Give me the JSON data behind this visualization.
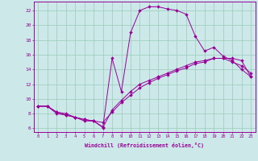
{
  "xlabel": "Windchill (Refroidissement éolien,°C)",
  "background_color": "#cce8e8",
  "grid_color": "#99ccbb",
  "line_color": "#990099",
  "xlim": [
    -0.5,
    23.5
  ],
  "ylim": [
    5.5,
    23.2
  ],
  "xticks": [
    0,
    1,
    2,
    3,
    4,
    5,
    6,
    7,
    8,
    9,
    10,
    11,
    12,
    13,
    14,
    15,
    16,
    17,
    18,
    19,
    20,
    21,
    22,
    23
  ],
  "yticks": [
    6,
    8,
    10,
    12,
    14,
    16,
    18,
    20,
    22
  ],
  "line1_x": [
    0,
    1,
    2,
    3,
    4,
    5,
    6,
    7,
    8,
    9,
    10,
    11,
    12,
    13,
    14,
    15,
    16,
    17,
    18,
    19,
    20,
    21,
    22,
    23
  ],
  "line1_y": [
    9,
    9,
    8.2,
    8.0,
    7.5,
    7.0,
    7.0,
    6.1,
    8.5,
    9.8,
    11.0,
    12.0,
    12.5,
    13.0,
    13.5,
    14.0,
    14.5,
    15.0,
    15.2,
    15.5,
    15.5,
    15.0,
    14.5,
    13.5
  ],
  "line2_x": [
    0,
    1,
    2,
    3,
    4,
    5,
    6,
    7,
    8,
    9,
    10,
    11,
    12,
    13,
    14,
    15,
    16,
    17,
    18,
    19,
    20,
    21,
    22,
    23
  ],
  "line2_y": [
    9,
    9,
    8.2,
    7.8,
    7.5,
    7.2,
    7.0,
    6.8,
    8.2,
    9.5,
    10.5,
    11.5,
    12.2,
    12.8,
    13.3,
    13.8,
    14.2,
    14.8,
    15.0,
    15.5,
    15.5,
    15.5,
    15.2,
    13.0
  ],
  "line3_x": [
    0,
    1,
    2,
    3,
    4,
    5,
    6,
    7,
    8,
    9,
    10,
    11,
    12,
    13,
    14,
    15,
    16,
    17,
    18,
    19,
    20,
    21,
    22,
    23
  ],
  "line3_y": [
    9,
    9,
    8.0,
    7.8,
    7.5,
    7.2,
    7.0,
    6.2,
    15.5,
    11.0,
    19.0,
    22.0,
    22.5,
    22.5,
    22.2,
    22.0,
    21.5,
    18.5,
    16.5,
    17.0,
    15.8,
    15.2,
    14.0,
    13.0
  ]
}
